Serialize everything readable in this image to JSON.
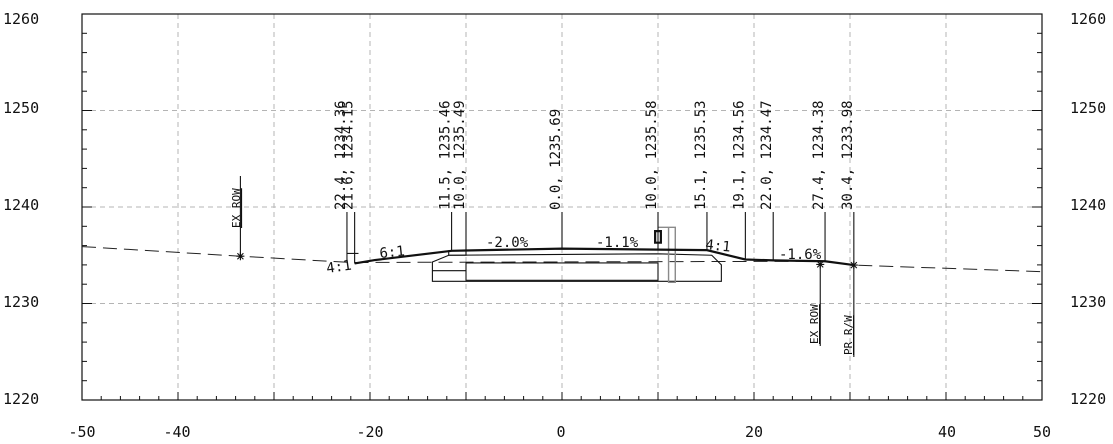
{
  "y_axis_labels": [
    "1220",
    "1230",
    "1240",
    "1250",
    "1260"
  ],
  "x_axis_labels": [
    "-50",
    "-40",
    "-20",
    "0",
    "20",
    "40",
    "50"
  ],
  "callouts": [
    {
      "offset": -22.4,
      "text": "22.4, 1234.36"
    },
    {
      "offset": -21.6,
      "text": "21.6, 1234.15"
    },
    {
      "offset": -11.5,
      "text": "11.5, 1235.46"
    },
    {
      "offset": -10.0,
      "text": "10.0, 1235.49"
    },
    {
      "offset": 0.0,
      "text": "0.0, 1235.69"
    },
    {
      "offset": 10.0,
      "text": "10.0, 1235.58"
    },
    {
      "offset": 15.1,
      "text": "15.1, 1235.53"
    },
    {
      "offset": 19.1,
      "text": "19.1, 1234.56"
    },
    {
      "offset": 22.0,
      "text": "22.0, 1234.47"
    },
    {
      "offset": 27.4,
      "text": "27.4, 1234.38"
    },
    {
      "offset": 30.4,
      "text": "30.4, 1233.98"
    }
  ],
  "slope_labels": {
    "left_back": "4:1",
    "left_fore": "6:1",
    "left_lane": "-2.0%",
    "right_lane": "-1.1%",
    "right_fore": "4:1",
    "right_shoulder": "-1.6%"
  },
  "markers": {
    "ex_row_left": "EX ROW",
    "ex_row_right": "EX ROW",
    "pr_rw_right": "PR R/W"
  },
  "chart_data": {
    "type": "cross-section",
    "xlim": [
      -50,
      50
    ],
    "ylim": [
      1220,
      1260
    ],
    "x_ticks": [
      -50,
      -40,
      -20,
      0,
      20,
      40,
      50
    ],
    "y_ticks": [
      1220,
      1230,
      1240,
      1250,
      1260
    ],
    "grid": true,
    "existing_ground": [
      [
        -50,
        1235.9
      ],
      [
        -33.5,
        1234.9
      ],
      [
        -22,
        1234.25
      ],
      [
        27.4,
        1234.38
      ],
      [
        30.4,
        1233.98
      ],
      [
        50,
        1233.3
      ]
    ],
    "proposed_surface": [
      [
        -21.6,
        1234.15
      ],
      [
        -19.5,
        1234.5
      ],
      [
        -11.5,
        1235.46
      ],
      [
        -10.0,
        1235.49
      ],
      [
        0.0,
        1235.69
      ],
      [
        10.0,
        1235.58
      ],
      [
        15.1,
        1235.53
      ],
      [
        19.1,
        1234.56
      ],
      [
        22.0,
        1234.47
      ],
      [
        27.4,
        1234.38
      ],
      [
        30.4,
        1233.98
      ]
    ],
    "points": [
      {
        "offset": -22.4,
        "elevation": 1234.36
      },
      {
        "offset": -21.6,
        "elevation": 1234.15
      },
      {
        "offset": -11.5,
        "elevation": 1235.46
      },
      {
        "offset": -10.0,
        "elevation": 1235.49
      },
      {
        "offset": 0.0,
        "elevation": 1235.69
      },
      {
        "offset": 10.0,
        "elevation": 1235.58
      },
      {
        "offset": 15.1,
        "elevation": 1235.53
      },
      {
        "offset": 19.1,
        "elevation": 1234.56
      },
      {
        "offset": 22.0,
        "elevation": 1234.47
      },
      {
        "offset": 27.4,
        "elevation": 1234.38
      },
      {
        "offset": 30.4,
        "elevation": 1233.98
      }
    ],
    "row_markers": {
      "ex_row_left": -33.5,
      "ex_row_right": 26.9,
      "pr_rw_right": 30.4
    }
  }
}
